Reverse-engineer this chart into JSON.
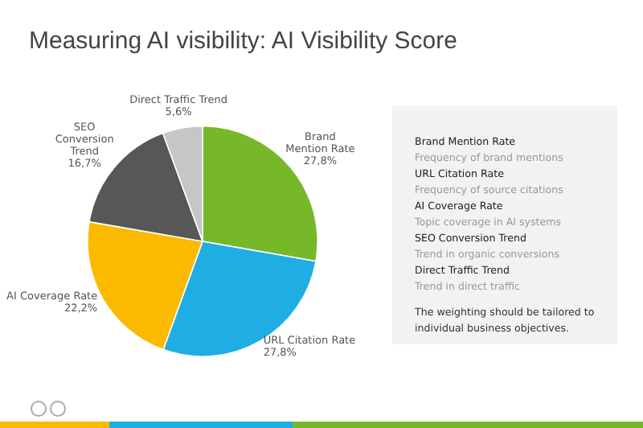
{
  "chart_data": [
    {
      "type": "pie",
      "title": "Measuring AI visibility: AI Visibility Score",
      "categories": [
        "Brand Mention Rate",
        "URL Citation Rate",
        "AI Coverage Rate",
        "SEO Conversion Trend",
        "Direct Traffic Trend"
      ],
      "values": [
        27.8,
        27.8,
        22.2,
        16.7,
        5.6
      ],
      "value_labels": [
        "27,8%",
        "27,8%",
        "22,2%",
        "16,7%",
        "5,6%"
      ],
      "colors": [
        "#76b82a",
        "#1eaee4",
        "#fbb900",
        "#575756",
        "#c6c6c6"
      ],
      "legend": false
    },
    {
      "type": "other",
      "annotations": [
        "Brand Mention Rate",
        "Frequency of brand mentions",
        "URL Citation Rate",
        "Frequency of source citations",
        "AI Coverage Rate",
        "Topic coverage in AI systems",
        "SEO Conversion Trend",
        "Trend in organic conversions",
        "Direct Traffic Trend",
        "Trend in direct traffic",
        "The weighting should be tailored to individual business objectives."
      ]
    }
  ]
}
